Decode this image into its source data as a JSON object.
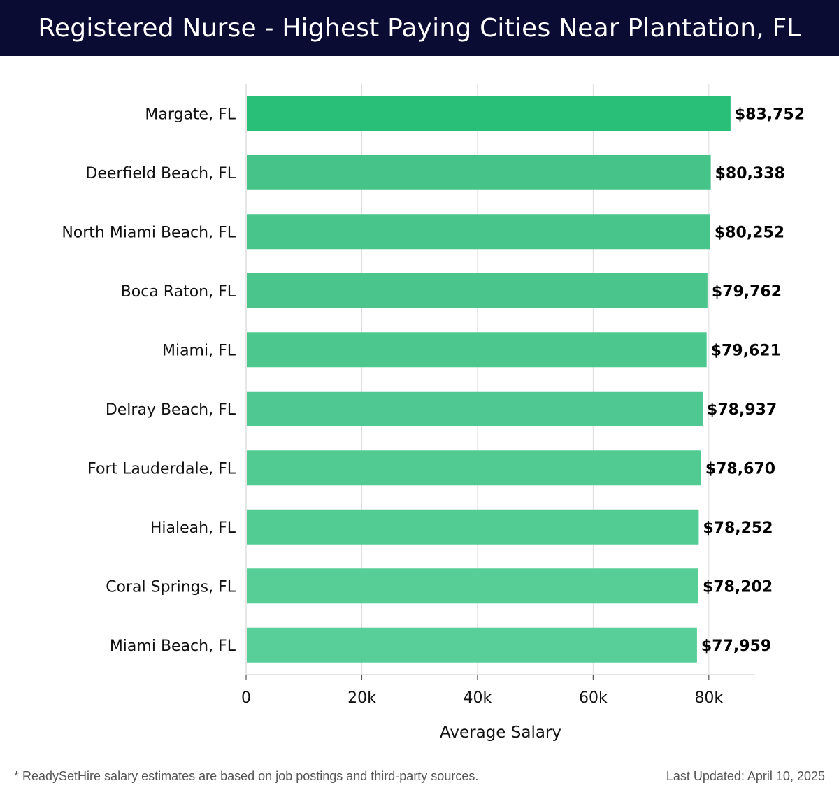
{
  "header": {
    "title": "Registered Nurse - Highest Paying Cities Near Plantation, FL"
  },
  "footer": {
    "note": "* ReadySetHire salary estimates are based on job postings and third-party sources.",
    "updated": "Last Updated: April 10, 2025"
  },
  "chart_data": {
    "type": "bar",
    "orientation": "horizontal",
    "title": "Registered Nurse - Highest Paying Cities Near Plantation, FL",
    "xlabel": "Average Salary",
    "ylabel": "",
    "categories": [
      "Margate, FL",
      "Deerfield Beach, FL",
      "North Miami Beach, FL",
      "Boca Raton, FL",
      "Miami, FL",
      "Delray Beach, FL",
      "Fort Lauderdale, FL",
      "Hialeah, FL",
      "Coral Springs, FL",
      "Miami Beach, FL"
    ],
    "values": [
      83752,
      80338,
      80252,
      79762,
      79621,
      78937,
      78670,
      78252,
      78202,
      77959
    ],
    "value_labels": [
      "$83,752",
      "$80,338",
      "$80,252",
      "$79,762",
      "$79,621",
      "$78,937",
      "$78,670",
      "$78,252",
      "$78,202",
      "$77,959"
    ],
    "xlim": [
      0,
      88000
    ],
    "xticks": [
      0,
      20000,
      40000,
      60000,
      80000
    ],
    "xtick_labels": [
      "0",
      "20k",
      "40k",
      "60k",
      "80k"
    ],
    "grid": true,
    "colors": {
      "highlight": "#2abf79",
      "bar_start": "#45c389",
      "bar_end": "#58cf98",
      "grid": "#dddddd",
      "axis": "#cccccc"
    }
  }
}
